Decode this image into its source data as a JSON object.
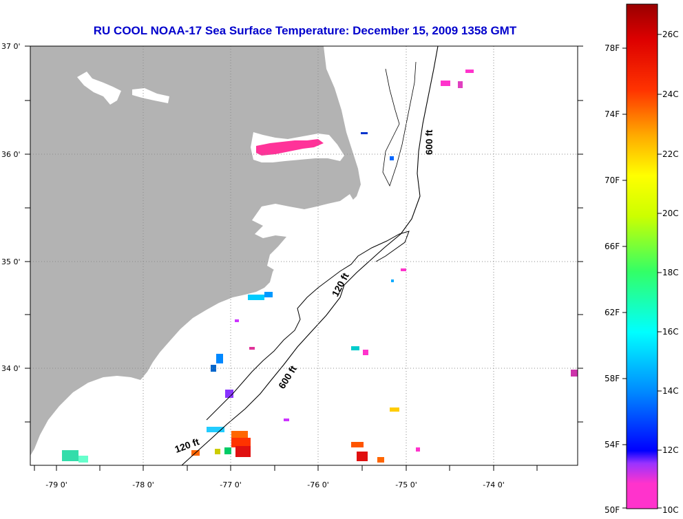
{
  "title": "RU COOL  NOAA-17  Sea Surface Temperature:  December 15, 2009 1358 GMT",
  "lat_ticks": [
    "37 0'",
    "36 0'",
    "35 0'",
    "34 0'"
  ],
  "lon_ticks": [
    "-79 0'",
    "-78 0'",
    "-77 0'",
    "-76 0'",
    "-75 0'",
    "-74 0'"
  ],
  "contour_labels": {
    "shelf_upper": "600 ft",
    "shelf_mid": "120 ft",
    "shelf_lower": "600 ft",
    "shelf_bottom": "120 ft"
  },
  "colorbar": {
    "fahrenheit": [
      "78F",
      "74F",
      "70F",
      "66F",
      "62F",
      "58F",
      "54F",
      "50F"
    ],
    "celsius": [
      "26C",
      "24C",
      "22C",
      "20C",
      "18C",
      "16C",
      "14C",
      "12C",
      "10C"
    ]
  },
  "colors": {
    "land": "#b3b3b3",
    "ocean": "#ffffff",
    "title": "#0000cc",
    "cloud_free_water_hot": "#e01010",
    "cold_inland_water": "#ff33aa"
  }
}
